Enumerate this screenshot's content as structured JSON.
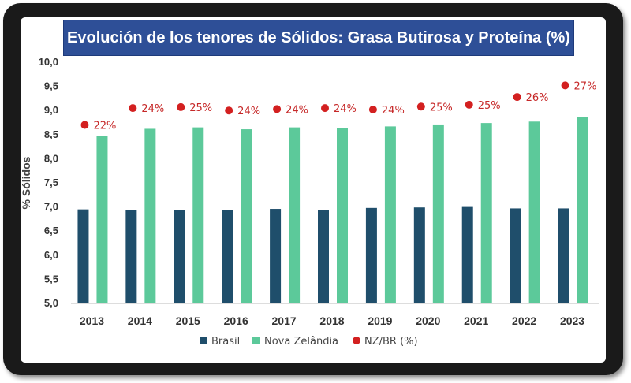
{
  "chart_data": {
    "type": "bar",
    "title": "Evolución de los tenores de Sólidos: Grasa Butirosa y Proteína (%)",
    "ylabel": "% Sólidos",
    "xlabel": "",
    "ylim": [
      5.0,
      10.0
    ],
    "yticks": [
      "5,0",
      "5,5",
      "6,0",
      "6,5",
      "7,0",
      "7,5",
      "8,0",
      "8,5",
      "9,0",
      "9,5",
      "10,0"
    ],
    "ytick_values": [
      5.0,
      5.5,
      6.0,
      6.5,
      7.0,
      7.5,
      8.0,
      8.5,
      9.0,
      9.5,
      10.0
    ],
    "categories": [
      "2013",
      "2014",
      "2015",
      "2016",
      "2017",
      "2018",
      "2019",
      "2020",
      "2021",
      "2022",
      "2023"
    ],
    "series": [
      {
        "name": "Brasil",
        "type": "bar",
        "color": "#1f4e6b",
        "values": [
          6.95,
          6.93,
          6.94,
          6.94,
          6.96,
          6.94,
          6.98,
          6.99,
          7.0,
          6.97,
          6.97
        ]
      },
      {
        "name": "Nova Zelândia",
        "type": "bar",
        "color": "#5cc99a",
        "values": [
          8.48,
          8.62,
          8.65,
          8.61,
          8.65,
          8.64,
          8.67,
          8.71,
          8.74,
          8.77,
          8.87
        ]
      },
      {
        "name": "NZ/BR (%)",
        "type": "scatter",
        "color": "#d32020",
        "values": [
          8.7,
          9.05,
          9.07,
          9.0,
          9.03,
          9.05,
          9.02,
          9.08,
          9.12,
          9.28,
          9.52
        ],
        "labels": [
          "22%",
          "24%",
          "25%",
          "24%",
          "24%",
          "24%",
          "24%",
          "25%",
          "25%",
          "26%",
          "27%"
        ]
      }
    ],
    "legend": [
      "Brasil",
      "Nova Zelândia",
      "NZ/BR (%)"
    ],
    "legend_position": "bottom",
    "grid": false
  }
}
